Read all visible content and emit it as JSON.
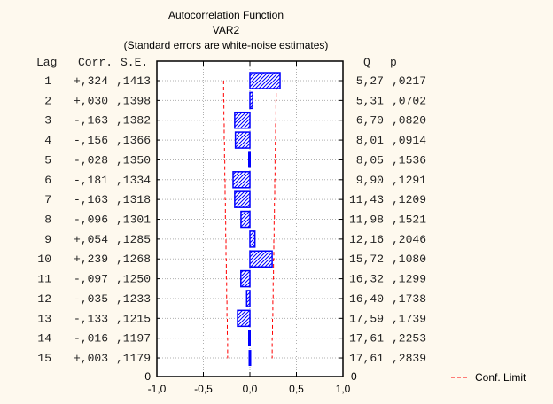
{
  "chart_data": {
    "type": "bar",
    "orientation": "horizontal",
    "title": "Autocorrelation Function",
    "subtitle": "VAR2",
    "note": "(Standard errors are white-noise estimates)",
    "columns": {
      "lag": "Lag",
      "corr": "Corr.",
      "se": "S.E.",
      "q": "Q",
      "p": "p"
    },
    "rows": [
      {
        "lag": "1",
        "corr": "+,324",
        "se": ",1413",
        "q": "5,27",
        "p": ",0217",
        "value": 0.324,
        "se_value": 0.1413
      },
      {
        "lag": "2",
        "corr": "+,030",
        "se": ",1398",
        "q": "5,31",
        "p": ",0702",
        "value": 0.03,
        "se_value": 0.1398
      },
      {
        "lag": "3",
        "corr": "-,163",
        "se": ",1382",
        "q": "6,70",
        "p": ",0820",
        "value": -0.163,
        "se_value": 0.1382
      },
      {
        "lag": "4",
        "corr": "-,156",
        "se": ",1366",
        "q": "8,01",
        "p": ",0914",
        "value": -0.156,
        "se_value": 0.1366
      },
      {
        "lag": "5",
        "corr": "-,028",
        "se": ",1350",
        "q": "8,05",
        "p": ",1536",
        "value": -0.028,
        "se_value": 0.135
      },
      {
        "lag": "6",
        "corr": "-,181",
        "se": ",1334",
        "q": "9,90",
        "p": ",1291",
        "value": -0.181,
        "se_value": 0.1334
      },
      {
        "lag": "7",
        "corr": "-,163",
        "se": ",1318",
        "q": "11,43",
        "p": ",1209",
        "value": -0.163,
        "se_value": 0.1318
      },
      {
        "lag": "8",
        "corr": "-,096",
        "se": ",1301",
        "q": "11,98",
        "p": ",1521",
        "value": -0.096,
        "se_value": 0.1301
      },
      {
        "lag": "9",
        "corr": "+,054",
        "se": ",1285",
        "q": "12,16",
        "p": ",2046",
        "value": 0.054,
        "se_value": 0.1285
      },
      {
        "lag": "10",
        "corr": "+,239",
        "se": ",1268",
        "q": "15,72",
        "p": ",1080",
        "value": 0.239,
        "se_value": 0.1268
      },
      {
        "lag": "11",
        "corr": "-,097",
        "se": ",1250",
        "q": "16,32",
        "p": ",1299",
        "value": -0.097,
        "se_value": 0.125
      },
      {
        "lag": "12",
        "corr": "-,035",
        "se": ",1233",
        "q": "16,40",
        "p": ",1738",
        "value": -0.035,
        "se_value": 0.1233
      },
      {
        "lag": "13",
        "corr": "-,133",
        "se": ",1215",
        "q": "17,59",
        "p": ",1739",
        "value": -0.133,
        "se_value": 0.1215
      },
      {
        "lag": "14",
        "corr": "-,016",
        "se": ",1197",
        "q": "17,61",
        "p": ",2253",
        "value": -0.016,
        "se_value": 0.1197
      },
      {
        "lag": "15",
        "corr": "+,003",
        "se": ",1179",
        "q": "17,61",
        "p": ",2839",
        "value": 0.003,
        "se_value": 0.1179
      }
    ],
    "zero_lag_label": "0",
    "xlim": [
      -1,
      1
    ],
    "x_ticks": [
      "-1,0",
      "-0,5",
      "0,0",
      "0,5",
      "1,0"
    ],
    "x_tick_values": [
      -1,
      -0.5,
      0,
      0.5,
      1
    ],
    "grid": true,
    "legend": {
      "label": "Conf. Limit",
      "placement": "bottom-right"
    },
    "colors": {
      "bar": "#0000FF",
      "conf_limit": "#FF0000",
      "grid": "#B0B0B0",
      "background": "#FEF9EE"
    }
  }
}
